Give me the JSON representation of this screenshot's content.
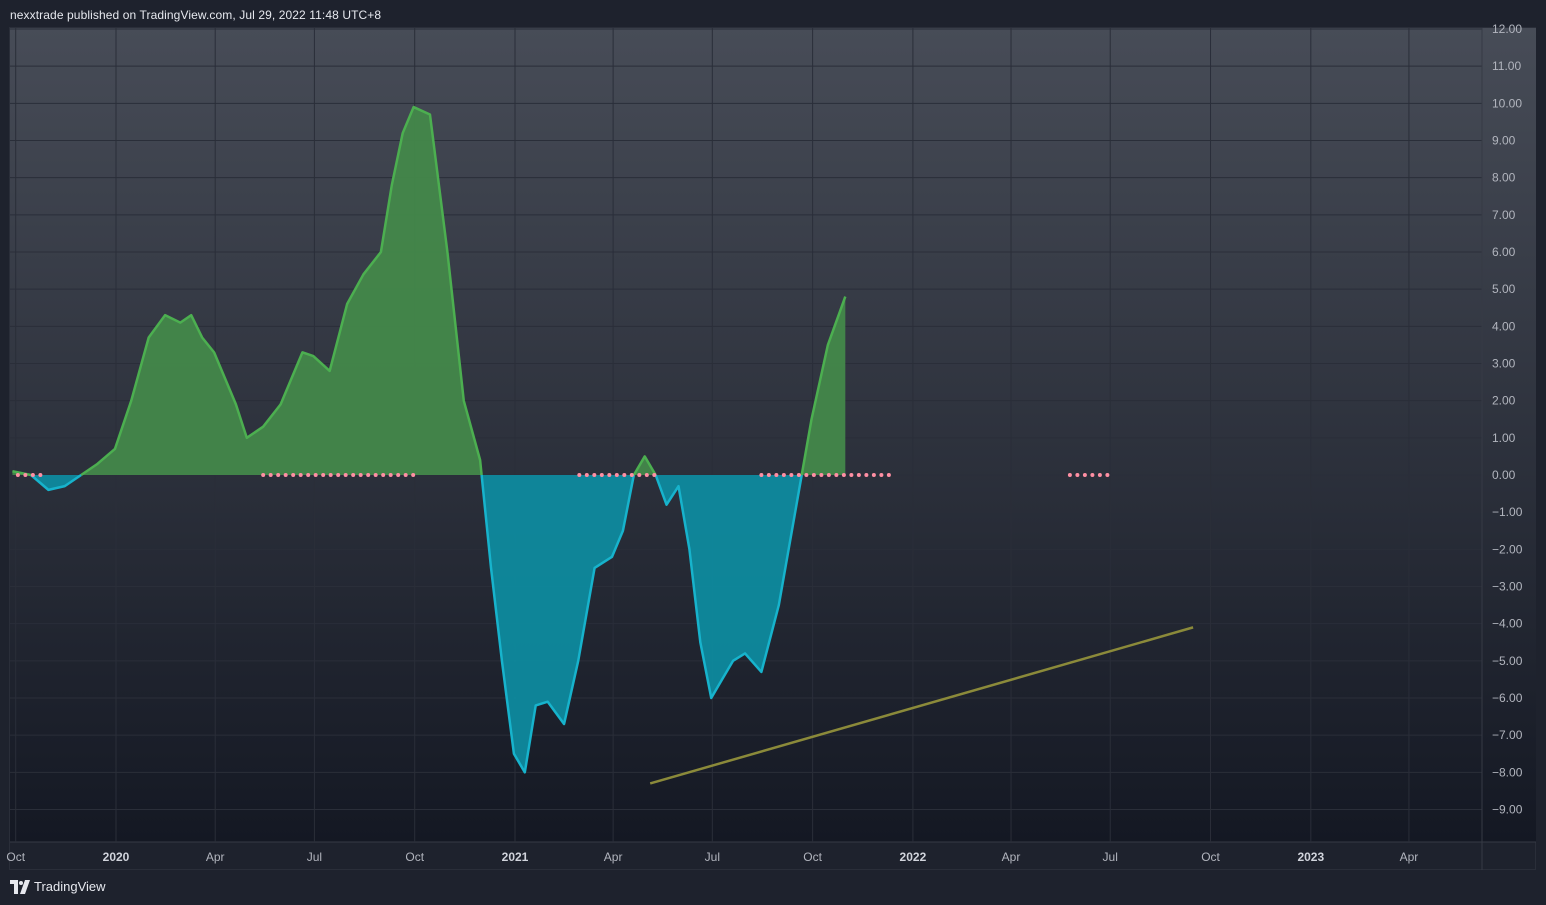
{
  "header": {
    "publisher_text": "nexxtrade published on TradingView.com, Jul 29, 2022 11:48 UTC+8"
  },
  "footer": {
    "brand": "TradingView"
  },
  "colors": {
    "positive_fill": "#43884a",
    "positive_line": "#4caf50",
    "negative_fill": "#0e8a9e",
    "negative_line": "#17b3cc",
    "trendline": "#8b8a3a",
    "dots": "#ff8fa3",
    "grid": "#2a2e39"
  },
  "chart_data": {
    "type": "area",
    "x_unit": "date",
    "ylim": [
      -9.5,
      12
    ],
    "xlim": [
      "2019-09-30",
      "2023-06-15"
    ],
    "grid": true,
    "y_ticks": [
      "12.00",
      "11.00",
      "10.00",
      "9.00",
      "8.00",
      "7.00",
      "6.00",
      "5.00",
      "4.00",
      "3.00",
      "2.00",
      "1.00",
      "0.00",
      "−1.00",
      "−2.00",
      "−3.00",
      "−4.00",
      "−5.00",
      "−6.00",
      "−7.00",
      "−8.00",
      "−9.00"
    ],
    "x_ticks": [
      {
        "date": "2019-10-01",
        "label": "Oct",
        "major": false
      },
      {
        "date": "2020-01-01",
        "label": "2020",
        "major": true
      },
      {
        "date": "2020-04-01",
        "label": "Apr",
        "major": false
      },
      {
        "date": "2020-07-01",
        "label": "Jul",
        "major": false
      },
      {
        "date": "2020-10-01",
        "label": "Oct",
        "major": false
      },
      {
        "date": "2021-01-01",
        "label": "2021",
        "major": true
      },
      {
        "date": "2021-04-01",
        "label": "Apr",
        "major": false
      },
      {
        "date": "2021-07-01",
        "label": "Jul",
        "major": false
      },
      {
        "date": "2021-10-01",
        "label": "Oct",
        "major": false
      },
      {
        "date": "2022-01-01",
        "label": "2022",
        "major": true
      },
      {
        "date": "2022-04-01",
        "label": "Apr",
        "major": false
      },
      {
        "date": "2022-07-01",
        "label": "Jul",
        "major": false
      },
      {
        "date": "2022-10-01",
        "label": "Oct",
        "major": false
      },
      {
        "date": "2023-01-01",
        "label": "2023",
        "major": true
      },
      {
        "date": "2023-04-01",
        "label": "Apr",
        "major": false
      }
    ],
    "series": [
      {
        "x": [
          "2019-09-28",
          "2019-10-15",
          "2019-10-31",
          "2019-11-15",
          "2019-11-30",
          "2019-12-15",
          "2019-12-31",
          "2020-01-15",
          "2020-01-31",
          "2020-02-15",
          "2020-02-29",
          "2020-03-10",
          "2020-03-20",
          "2020-03-31",
          "2020-04-10",
          "2020-04-20",
          "2020-04-30",
          "2020-05-15",
          "2020-05-31",
          "2020-06-10",
          "2020-06-20",
          "2020-06-30",
          "2020-07-15",
          "2020-07-31",
          "2020-08-15",
          "2020-08-31",
          "2020-09-10",
          "2020-09-20",
          "2020-09-30",
          "2020-10-15",
          "2020-10-31",
          "2020-11-15",
          "2020-11-30",
          "2020-12-10",
          "2020-12-20",
          "2020-12-31",
          "2021-01-10",
          "2021-01-20",
          "2021-01-31",
          "2021-02-15",
          "2021-02-28",
          "2021-03-15",
          "2021-03-31",
          "2021-04-10",
          "2021-04-20",
          "2021-04-30",
          "2021-05-10",
          "2021-05-20",
          "2021-05-31",
          "2021-06-10",
          "2021-06-20",
          "2021-06-30",
          "2021-07-10",
          "2021-07-20",
          "2021-07-31",
          "2021-08-15",
          "2021-08-31",
          "2021-09-15",
          "2021-09-30",
          "2021-10-15",
          "2021-10-31",
          "2021-11-10",
          "2021-11-20",
          "2021-11-30",
          "2021-12-10",
          "2021-12-20",
          "2021-12-31",
          "2022-01-15",
          "2022-01-31",
          "2022-02-15",
          "2022-02-28",
          "2022-03-15",
          "2022-03-31",
          "2022-04-15",
          "2022-04-30",
          "2022-05-15",
          "2022-05-31",
          "2022-06-15",
          "2022-06-30",
          "2022-07-10"
        ],
        "values": [
          0.1,
          0.0,
          -0.4,
          -0.3,
          0.0,
          0.3,
          0.7,
          2.0,
          3.7,
          4.3,
          4.1,
          4.3,
          3.7,
          3.3,
          2.6,
          1.9,
          1.0,
          1.3,
          1.9,
          2.6,
          3.3,
          3.2,
          2.8,
          4.6,
          5.4,
          6.0,
          7.8,
          9.2,
          9.9,
          9.7,
          6.0,
          2.0,
          0.4,
          -2.5,
          -5.0,
          -7.5,
          -8.0,
          -6.2,
          -6.1,
          -6.7,
          -5.0,
          -2.5,
          -2.2,
          -1.5,
          0.0,
          0.5,
          0.0,
          -0.8,
          -0.3,
          -2.0,
          -4.5,
          -6.0,
          -5.5,
          -5.0,
          -4.8,
          -5.3,
          -3.5,
          -1.0,
          1.5,
          3.5,
          4.8,
          null,
          null,
          null,
          null,
          null,
          null,
          null,
          null,
          null,
          null,
          null,
          null,
          null,
          null,
          null,
          null,
          null,
          null,
          null
        ]
      }
    ],
    "trendline": {
      "start": {
        "x": "2021-05-05",
        "y": -8.3
      },
      "end": {
        "x": "2022-09-15",
        "y": -4.1
      }
    },
    "zero_dot_ranges": [
      [
        "2019-10-03",
        "2019-10-25"
      ],
      [
        "2020-05-15",
        "2020-09-30"
      ],
      [
        "2021-03-01",
        "2021-05-10"
      ],
      [
        "2021-08-15",
        "2021-12-15"
      ],
      [
        "2022-05-25",
        "2022-07-05"
      ]
    ]
  }
}
